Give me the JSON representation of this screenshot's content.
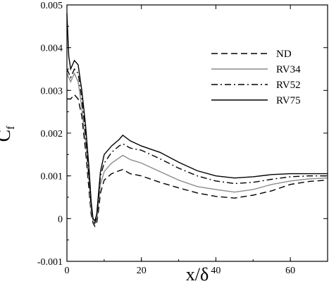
{
  "chart_data": {
    "type": "line",
    "xlabel": "x/δ",
    "ylabel": "C",
    "ylabel_subscript": "f",
    "xlim": [
      0,
      70
    ],
    "ylim": [
      -0.001,
      0.005
    ],
    "x_ticks": [
      0,
      20,
      40,
      60
    ],
    "x_tick_labels": [
      "0",
      "20",
      "40",
      "60"
    ],
    "y_ticks": [
      -0.001,
      0,
      0.001,
      0.002,
      0.003,
      0.004,
      0.005
    ],
    "y_tick_labels": [
      "-0.001",
      "0",
      "0.001",
      "0.002",
      "0.003",
      "0.004",
      "0.005"
    ],
    "grid": false,
    "legend_position": "top-right",
    "series": [
      {
        "name": "ND",
        "color": "#000000",
        "dash": "dashed",
        "points": [
          [
            0,
            0.0028
          ],
          [
            1,
            0.0028
          ],
          [
            2,
            0.0029
          ],
          [
            3,
            0.0028
          ],
          [
            4,
            0.0024
          ],
          [
            5,
            0.0016
          ],
          [
            6,
            0.0006
          ],
          [
            6.5,
            0.0001
          ],
          [
            7,
            -0.0001
          ],
          [
            7.5,
            -0.00018
          ],
          [
            8,
            -0.0001
          ],
          [
            8.5,
            0.0002
          ],
          [
            9,
            0.0006
          ],
          [
            10,
            0.0009
          ],
          [
            12,
            0.00105
          ],
          [
            14,
            0.00112
          ],
          [
            15,
            0.00115
          ],
          [
            17,
            0.00105
          ],
          [
            20,
            0.001
          ],
          [
            25,
            0.00085
          ],
          [
            30,
            0.00072
          ],
          [
            35,
            0.0006
          ],
          [
            40,
            0.00052
          ],
          [
            45,
            0.00048
          ],
          [
            50,
            0.00055
          ],
          [
            55,
            0.00065
          ],
          [
            60,
            0.0008
          ],
          [
            65,
            0.00087
          ],
          [
            70,
            0.0009
          ]
        ]
      },
      {
        "name": "RV34",
        "color": "#8c8c8c",
        "dash": "solid",
        "points": [
          [
            0,
            0.0034
          ],
          [
            1,
            0.0032
          ],
          [
            2,
            0.0034
          ],
          [
            3,
            0.0032
          ],
          [
            4,
            0.0026
          ],
          [
            5,
            0.0018
          ],
          [
            6,
            0.0008
          ],
          [
            6.5,
            0.0002
          ],
          [
            7,
            -5e-05
          ],
          [
            7.5,
            -0.00012
          ],
          [
            8,
            0.0
          ],
          [
            8.5,
            0.0004
          ],
          [
            9,
            0.0008
          ],
          [
            10,
            0.0011
          ],
          [
            12,
            0.0013
          ],
          [
            14,
            0.00142
          ],
          [
            15,
            0.00148
          ],
          [
            17,
            0.00138
          ],
          [
            20,
            0.0013
          ],
          [
            25,
            0.0011
          ],
          [
            30,
            0.0009
          ],
          [
            35,
            0.00075
          ],
          [
            40,
            0.00068
          ],
          [
            45,
            0.00062
          ],
          [
            50,
            0.00068
          ],
          [
            55,
            0.0008
          ],
          [
            60,
            0.00088
          ],
          [
            65,
            0.00093
          ],
          [
            70,
            0.00095
          ]
        ]
      },
      {
        "name": "RV52",
        "color": "#000000",
        "dash": "dashdot",
        "points": [
          [
            0,
            0.0035
          ],
          [
            1,
            0.0033
          ],
          [
            2,
            0.0035
          ],
          [
            3,
            0.0034
          ],
          [
            4,
            0.0028
          ],
          [
            5,
            0.002
          ],
          [
            6,
            0.0009
          ],
          [
            6.5,
            0.0003
          ],
          [
            7,
            0.0
          ],
          [
            7.5,
            -0.0001
          ],
          [
            8,
            5e-05
          ],
          [
            8.5,
            0.0005
          ],
          [
            9,
            0.001
          ],
          [
            10,
            0.0013
          ],
          [
            12,
            0.00155
          ],
          [
            14,
            0.0017
          ],
          [
            15,
            0.00175
          ],
          [
            17,
            0.00165
          ],
          [
            20,
            0.0016
          ],
          [
            25,
            0.0014
          ],
          [
            30,
            0.00118
          ],
          [
            35,
            0.001
          ],
          [
            40,
            0.00088
          ],
          [
            45,
            0.00082
          ],
          [
            50,
            0.00085
          ],
          [
            55,
            0.00092
          ],
          [
            60,
            0.00098
          ],
          [
            65,
            0.001
          ],
          [
            70,
            0.001
          ]
        ]
      },
      {
        "name": "RV75",
        "color": "#000000",
        "dash": "solid",
        "points": [
          [
            0,
            0.0048
          ],
          [
            0.5,
            0.0038
          ],
          [
            1,
            0.0035
          ],
          [
            2,
            0.0037
          ],
          [
            3,
            0.0036
          ],
          [
            4,
            0.003
          ],
          [
            5,
            0.0022
          ],
          [
            6,
            0.0011
          ],
          [
            6.5,
            0.0004
          ],
          [
            7,
            0.0
          ],
          [
            7.5,
            -5e-05
          ],
          [
            8,
            0.0001
          ],
          [
            8.5,
            0.0006
          ],
          [
            9,
            0.0011
          ],
          [
            10,
            0.0015
          ],
          [
            12,
            0.0017
          ],
          [
            14,
            0.00185
          ],
          [
            15,
            0.00195
          ],
          [
            17,
            0.00182
          ],
          [
            20,
            0.0017
          ],
          [
            25,
            0.00155
          ],
          [
            30,
            0.00132
          ],
          [
            35,
            0.00112
          ],
          [
            40,
            0.001
          ],
          [
            45,
            0.00095
          ],
          [
            50,
            0.00098
          ],
          [
            55,
            0.00103
          ],
          [
            60,
            0.00105
          ],
          [
            65,
            0.00105
          ],
          [
            70,
            0.00105
          ]
        ]
      }
    ]
  }
}
